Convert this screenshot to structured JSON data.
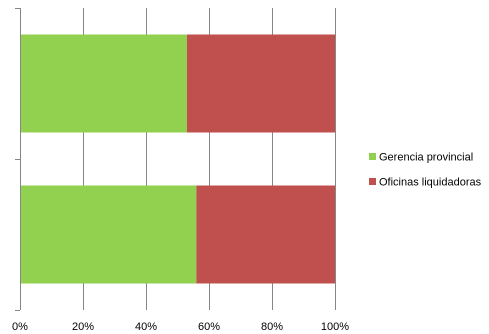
{
  "chart_data": {
    "type": "bar",
    "orientation": "horizontal",
    "stacked": "percent",
    "categories": [
      "",
      ""
    ],
    "series": [
      {
        "name": "Gerencia provincial",
        "color": "#92d050",
        "values": [
          53,
          56
        ]
      },
      {
        "name": "Oficinas liquidadoras",
        "color": "#c0504d",
        "values": [
          47,
          44
        ]
      }
    ],
    "x_ticks": [
      "0%",
      "20%",
      "40%",
      "60%",
      "80%",
      "100%"
    ],
    "xlim": [
      0,
      100
    ],
    "grid": "vertical",
    "legend_position": "right",
    "title": "",
    "xlabel": "",
    "ylabel": ""
  }
}
